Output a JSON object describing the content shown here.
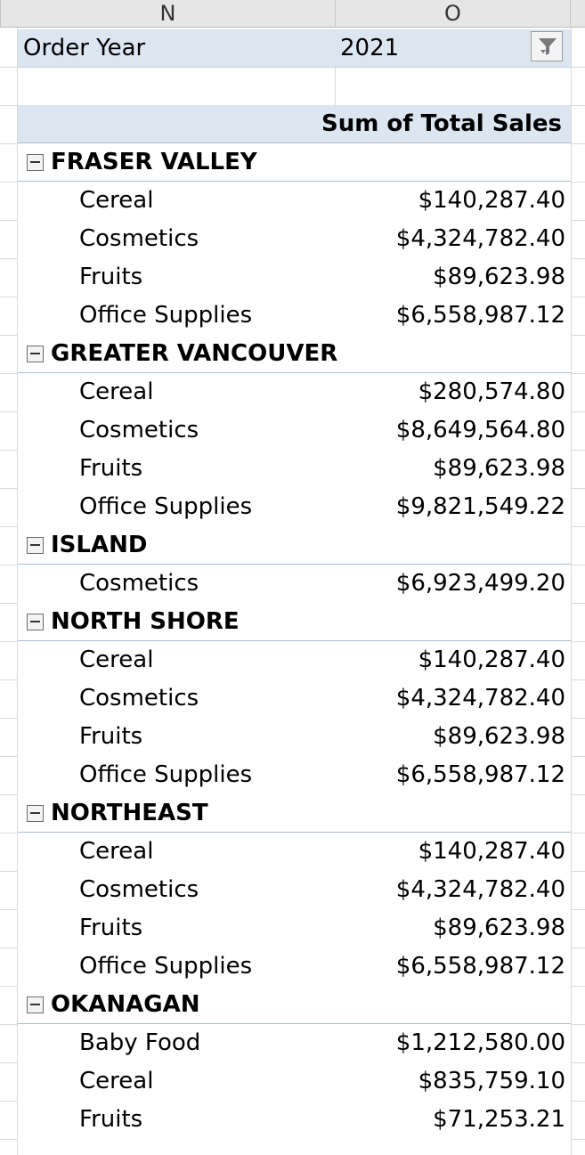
{
  "columns": {
    "n": "N",
    "o": "O"
  },
  "filter": {
    "label": "Order Year",
    "value": "2021",
    "button_icon": "filter-dropdown-icon"
  },
  "pivot": {
    "value_header": "Sum of Total Sales",
    "groups": [
      {
        "name": "FRASER VALLEY",
        "items": [
          {
            "label": "Cereal",
            "value": "$140,287.40"
          },
          {
            "label": "Cosmetics",
            "value": "$4,324,782.40"
          },
          {
            "label": "Fruits",
            "value": "$89,623.98"
          },
          {
            "label": "Office Supplies",
            "value": "$6,558,987.12"
          }
        ]
      },
      {
        "name": "GREATER VANCOUVER",
        "items": [
          {
            "label": "Cereal",
            "value": "$280,574.80"
          },
          {
            "label": "Cosmetics",
            "value": "$8,649,564.80"
          },
          {
            "label": "Fruits",
            "value": "$89,623.98"
          },
          {
            "label": "Office Supplies",
            "value": "$9,821,549.22"
          }
        ]
      },
      {
        "name": "ISLAND",
        "items": [
          {
            "label": "Cosmetics",
            "value": "$6,923,499.20"
          }
        ]
      },
      {
        "name": "NORTH SHORE",
        "items": [
          {
            "label": "Cereal",
            "value": "$140,287.40"
          },
          {
            "label": "Cosmetics",
            "value": "$4,324,782.40"
          },
          {
            "label": "Fruits",
            "value": "$89,623.98"
          },
          {
            "label": "Office Supplies",
            "value": "$6,558,987.12"
          }
        ]
      },
      {
        "name": "NORTHEAST",
        "items": [
          {
            "label": "Cereal",
            "value": "$140,287.40"
          },
          {
            "label": "Cosmetics",
            "value": "$4,324,782.40"
          },
          {
            "label": "Fruits",
            "value": "$89,623.98"
          },
          {
            "label": "Office Supplies",
            "value": "$6,558,987.12"
          }
        ]
      },
      {
        "name": "OKANAGAN",
        "items": [
          {
            "label": "Baby Food",
            "value": "$1,212,580.00"
          },
          {
            "label": "Cereal",
            "value": "$835,759.10"
          },
          {
            "label": "Fruits",
            "value": "$71,253.21"
          }
        ]
      }
    ]
  }
}
